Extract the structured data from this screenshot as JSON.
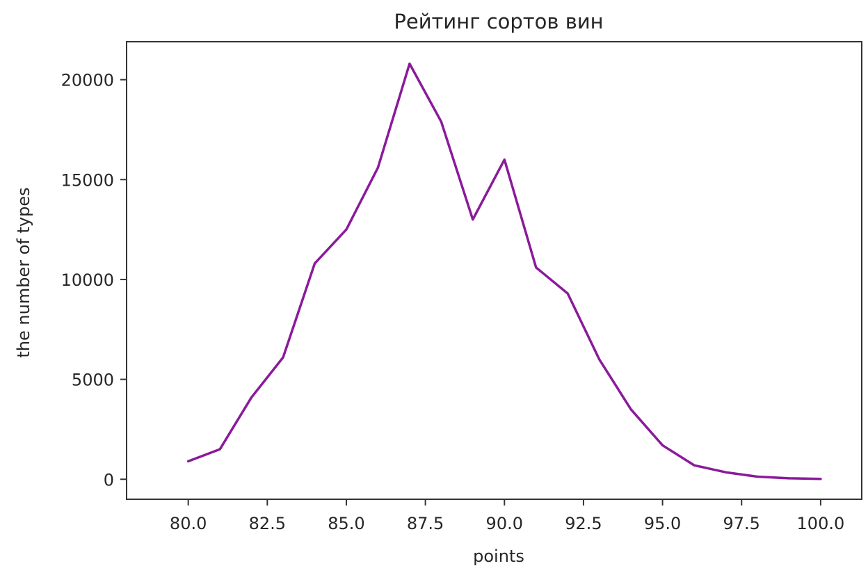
{
  "chart_data": {
    "type": "line",
    "title": "Рейтинг сортов вин",
    "xlabel": "points",
    "ylabel": "the number of types",
    "xlim": [
      78.05,
      101.3
    ],
    "ylim": [
      -1000,
      21900
    ],
    "grid": false,
    "x_ticks": [
      80.0,
      82.5,
      85.0,
      87.5,
      90.0,
      92.5,
      95.0,
      97.5,
      100.0
    ],
    "x_tick_labels": [
      "80.0",
      "82.5",
      "85.0",
      "87.5",
      "90.0",
      "92.5",
      "95.0",
      "97.5",
      "100.0"
    ],
    "y_ticks": [
      0,
      5000,
      10000,
      15000,
      20000
    ],
    "y_tick_labels": [
      "0",
      "5000",
      "10000",
      "15000",
      "20000"
    ],
    "colors": {
      "series": "#8b1a9b",
      "axes": "#333333",
      "text": "#262626"
    },
    "series": [
      {
        "x": [
          80,
          81,
          82,
          83,
          84,
          85,
          86,
          87,
          88,
          89,
          90,
          91,
          92,
          93,
          94,
          95,
          96,
          97,
          98,
          99,
          100
        ],
        "y": [
          900,
          1500,
          4100,
          6100,
          10800,
          12500,
          15600,
          20800,
          17900,
          13000,
          16000,
          10600,
          9300,
          6000,
          3500,
          1700,
          700,
          350,
          130,
          50,
          20
        ]
      }
    ]
  }
}
